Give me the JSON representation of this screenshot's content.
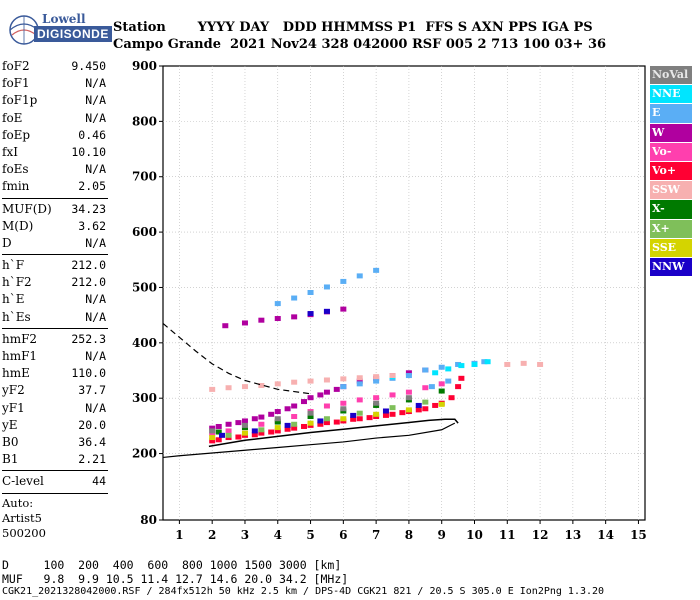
{
  "logo": {
    "top": "Lowell",
    "bottom": "DIGISONDE"
  },
  "header": {
    "line1": "Station       YYYY DAY   DDD HHMMSS P1  FFS S AXN PPS IGA PS",
    "line2": "Campo Grande  2021 Nov24 328 042000 RSF 005 2 713 100 03+ 36"
  },
  "params": [
    {
      "name": "foF2",
      "value": "9.450"
    },
    {
      "name": "foF1",
      "value": "N/A"
    },
    {
      "name": "foF1p",
      "value": "N/A"
    },
    {
      "name": "foE",
      "value": "N/A"
    },
    {
      "name": "foEp",
      "value": "0.46"
    },
    {
      "name": "fxI",
      "value": "10.10"
    },
    {
      "name": "foEs",
      "value": "N/A"
    },
    {
      "name": "fmin",
      "value": "2.05"
    },
    {
      "sep": true
    },
    {
      "name": "MUF(D)",
      "value": "34.23"
    },
    {
      "name": "M(D)",
      "value": "3.62"
    },
    {
      "name": "D",
      "value": "N/A"
    },
    {
      "sep": true
    },
    {
      "name": "h`F",
      "value": "212.0"
    },
    {
      "name": "h`F2",
      "value": "212.0"
    },
    {
      "name": "h`E",
      "value": "N/A"
    },
    {
      "name": "h`Es",
      "value": "N/A"
    },
    {
      "sep": true
    },
    {
      "name": "hmF2",
      "value": "252.3"
    },
    {
      "name": "hmF1",
      "value": "N/A"
    },
    {
      "name": "hmE",
      "value": "110.0"
    },
    {
      "name": "yF2",
      "value": "37.7"
    },
    {
      "name": "yF1",
      "value": "N/A"
    },
    {
      "name": "yE",
      "value": "20.0"
    },
    {
      "name": "B0",
      "value": "36.4"
    },
    {
      "name": "B1",
      "value": "2.21"
    },
    {
      "sep": true
    },
    {
      "name": "C-level",
      "value": "44"
    },
    {
      "sep": true
    }
  ],
  "auto": [
    "Auto:",
    "Artist5",
    "500200"
  ],
  "legend": [
    {
      "label": "NoVal",
      "bg": "#7f7f7f",
      "fg": "#e8e8e8"
    },
    {
      "label": "NNE",
      "bg": "#00e5ff",
      "fg": "#ffffff"
    },
    {
      "label": "E",
      "bg": "#5aaef5",
      "fg": "#ffffff"
    },
    {
      "label": "W",
      "bg": "#b0009f",
      "fg": "#ffffff"
    },
    {
      "label": "Vo-",
      "bg": "#ff3fae",
      "fg": "#ffffff"
    },
    {
      "label": "Vo+",
      "bg": "#ff0033",
      "fg": "#ffffff"
    },
    {
      "label": "SSW",
      "bg": "#f7b0b0",
      "fg": "#ffffff"
    },
    {
      "label": "X-",
      "bg": "#007a00",
      "fg": "#ffffff"
    },
    {
      "label": "X+",
      "bg": "#7fbf5a",
      "fg": "#ffffff"
    },
    {
      "label": "SSE",
      "bg": "#d4d400",
      "fg": "#ffffff"
    },
    {
      "label": "NNW",
      "bg": "#1a00c8",
      "fg": "#ffffff"
    }
  ],
  "footer": {
    "line1": "D     100  200  400  600  800 1000 1500 3000 [km]",
    "line2": "MUF   9.8  9.9 10.5 11.4 12.7 14.6 20.0 34.2 [MHz]",
    "line3": "CGK21_2021328042000.RSF / 284fx512h 50 kHz 2.5 km / DPS-4D CGK21 821 / 20.5 S 305.0 E Ion2Png 1.3.20"
  },
  "chart_data": {
    "type": "scatter",
    "xlim": [
      0.5,
      15.2
    ],
    "ylim": [
      80,
      900
    ],
    "xticks": [
      1,
      2,
      3,
      4,
      5,
      6,
      7,
      8,
      9,
      10,
      11,
      12,
      13,
      14,
      15
    ],
    "yticks": [
      80,
      200,
      300,
      400,
      500,
      600,
      700,
      800,
      900
    ],
    "grid": true,
    "legend_position": "right",
    "profile_curve": {
      "x": [
        1.9,
        3.0,
        4.0,
        5.0,
        6.0,
        7.0,
        8.0,
        8.6,
        9.1,
        9.4,
        9.5
      ],
      "y": [
        213,
        224,
        231,
        238,
        244,
        250,
        256,
        260,
        262,
        262,
        255
      ]
    },
    "lower_curve": {
      "x": [
        0.5,
        1.0,
        2.0,
        3.0,
        4.0,
        5.0,
        6.0,
        7.0,
        8.0,
        9.0,
        9.4
      ],
      "y": [
        193,
        196,
        201,
        206,
        211,
        216,
        221,
        228,
        233,
        243,
        255
      ]
    },
    "dashed_curve": {
      "x": [
        0.5,
        1.0,
        1.5,
        2.0,
        2.5,
        3.0,
        4.0,
        5.0
      ],
      "y": [
        435,
        410,
        385,
        362,
        345,
        332,
        316,
        308
      ]
    },
    "series": [
      {
        "name": "Vo+",
        "color": "#ff0033",
        "points": [
          [
            2.0,
            222
          ],
          [
            2.5,
            228
          ],
          [
            3.0,
            232
          ],
          [
            3.5,
            236
          ],
          [
            4.0,
            240
          ],
          [
            4.5,
            245
          ],
          [
            5.0,
            250
          ],
          [
            5.5,
            255
          ],
          [
            6.0,
            258
          ],
          [
            6.5,
            262
          ],
          [
            7.0,
            266
          ],
          [
            7.5,
            270
          ],
          [
            8.0,
            275
          ],
          [
            8.5,
            280
          ],
          [
            9.0,
            290
          ],
          [
            9.3,
            300
          ],
          [
            9.5,
            320
          ],
          [
            9.6,
            335
          ],
          [
            2.2,
            224
          ],
          [
            2.8,
            229
          ],
          [
            3.3,
            233
          ],
          [
            3.8,
            238
          ],
          [
            4.3,
            243
          ],
          [
            4.8,
            248
          ],
          [
            5.3,
            252
          ],
          [
            5.8,
            256
          ],
          [
            6.3,
            261
          ],
          [
            6.8,
            264
          ],
          [
            7.3,
            268
          ],
          [
            7.8,
            273
          ],
          [
            8.3,
            278
          ],
          [
            8.8,
            286
          ]
        ]
      },
      {
        "name": "W",
        "color": "#b0009f",
        "points": [
          [
            2.0,
            245
          ],
          [
            2.5,
            252
          ],
          [
            3.0,
            258
          ],
          [
            3.5,
            265
          ],
          [
            4.0,
            275
          ],
          [
            4.5,
            285
          ],
          [
            5.0,
            300
          ],
          [
            5.5,
            310
          ],
          [
            6.0,
            320
          ],
          [
            6.5,
            330
          ],
          [
            7.0,
            335
          ],
          [
            7.5,
            340
          ],
          [
            8.0,
            345
          ],
          [
            8.5,
            350
          ],
          [
            2.4,
            430
          ],
          [
            3.0,
            435
          ],
          [
            3.5,
            440
          ],
          [
            4.0,
            443
          ],
          [
            4.5,
            446
          ],
          [
            5.0,
            450
          ],
          [
            5.5,
            455
          ],
          [
            6.0,
            460
          ],
          [
            2.2,
            248
          ],
          [
            2.8,
            255
          ],
          [
            3.3,
            262
          ],
          [
            3.8,
            270
          ],
          [
            4.3,
            280
          ],
          [
            4.8,
            293
          ],
          [
            5.3,
            305
          ],
          [
            5.8,
            315
          ]
        ]
      },
      {
        "name": "Vo-",
        "color": "#ff3fae",
        "points": [
          [
            2.0,
            235
          ],
          [
            2.5,
            240
          ],
          [
            3.0,
            246
          ],
          [
            3.5,
            252
          ],
          [
            4.0,
            258
          ],
          [
            4.5,
            266
          ],
          [
            5.0,
            275
          ],
          [
            5.5,
            285
          ],
          [
            6.0,
            290
          ],
          [
            6.5,
            296
          ],
          [
            7.0,
            300
          ],
          [
            7.5,
            305
          ],
          [
            8.0,
            310
          ],
          [
            8.5,
            318
          ],
          [
            9.0,
            325
          ]
        ]
      },
      {
        "name": "E",
        "color": "#5aaef5",
        "points": [
          [
            6.0,
            320
          ],
          [
            6.5,
            325
          ],
          [
            7.0,
            330
          ],
          [
            7.5,
            335
          ],
          [
            8.0,
            340
          ],
          [
            8.5,
            350
          ],
          [
            9.0,
            355
          ],
          [
            9.5,
            360
          ],
          [
            10.0,
            362
          ],
          [
            10.3,
            365
          ],
          [
            9.2,
            330
          ],
          [
            8.7,
            320
          ],
          [
            4.0,
            470
          ],
          [
            4.5,
            480
          ],
          [
            5.0,
            490
          ],
          [
            5.5,
            500
          ],
          [
            6.0,
            510
          ],
          [
            6.5,
            520
          ],
          [
            7.0,
            530
          ]
        ]
      },
      {
        "name": "NNE",
        "color": "#00e5ff",
        "points": [
          [
            8.8,
            345
          ],
          [
            9.2,
            352
          ],
          [
            9.6,
            358
          ],
          [
            10.0,
            360
          ],
          [
            10.4,
            365
          ],
          [
            7.5,
            338
          ]
        ]
      },
      {
        "name": "SSW",
        "color": "#f7b0b0",
        "points": [
          [
            2.0,
            315
          ],
          [
            2.5,
            318
          ],
          [
            3.0,
            320
          ],
          [
            3.5,
            322
          ],
          [
            4.0,
            325
          ],
          [
            4.5,
            328
          ],
          [
            5.0,
            330
          ],
          [
            5.5,
            332
          ],
          [
            6.0,
            334
          ],
          [
            6.5,
            336
          ],
          [
            7.0,
            338
          ],
          [
            7.5,
            340
          ],
          [
            11.0,
            360
          ],
          [
            11.5,
            362
          ],
          [
            12.0,
            360
          ]
        ]
      },
      {
        "name": "X-",
        "color": "#007a00",
        "points": [
          [
            2.2,
            238
          ],
          [
            3.0,
            246
          ],
          [
            4.0,
            256
          ],
          [
            5.0,
            266
          ],
          [
            6.0,
            276
          ],
          [
            7.0,
            286
          ],
          [
            8.0,
            296
          ],
          [
            9.0,
            312
          ]
        ]
      },
      {
        "name": "X+",
        "color": "#7fbf5a",
        "points": [
          [
            2.5,
            232
          ],
          [
            3.5,
            242
          ],
          [
            4.5,
            252
          ],
          [
            5.5,
            262
          ],
          [
            6.5,
            272
          ],
          [
            7.5,
            282
          ],
          [
            8.5,
            292
          ]
        ]
      },
      {
        "name": "SSE",
        "color": "#d4d400",
        "points": [
          [
            2.0,
            228
          ],
          [
            3.0,
            236
          ],
          [
            4.0,
            246
          ],
          [
            5.0,
            254
          ],
          [
            6.0,
            262
          ],
          [
            7.0,
            270
          ],
          [
            8.0,
            278
          ],
          [
            9.0,
            288
          ]
        ]
      },
      {
        "name": "NNW",
        "color": "#1a00c8",
        "points": [
          [
            2.3,
            232
          ],
          [
            3.3,
            240
          ],
          [
            4.3,
            250
          ],
          [
            5.3,
            258
          ],
          [
            6.3,
            268
          ],
          [
            7.3,
            276
          ],
          [
            8.3,
            286
          ],
          [
            5.0,
            452
          ],
          [
            5.5,
            456
          ]
        ]
      },
      {
        "name": "NoVal",
        "color": "#7f7f7f",
        "points": [
          [
            2.0,
            240
          ],
          [
            3.0,
            250
          ],
          [
            4.0,
            262
          ],
          [
            5.0,
            272
          ],
          [
            6.0,
            280
          ],
          [
            7.0,
            290
          ],
          [
            8.0,
            300
          ]
        ]
      }
    ]
  }
}
